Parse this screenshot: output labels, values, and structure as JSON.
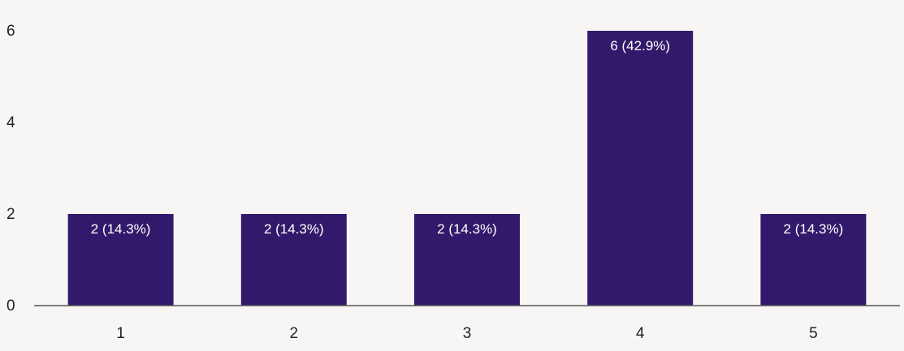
{
  "chart_data": {
    "type": "bar",
    "categories": [
      "1",
      "2",
      "3",
      "4",
      "5"
    ],
    "values": [
      2,
      2,
      2,
      6,
      2
    ],
    "data_labels": [
      "2 (14.3%)",
      "2 (14.3%)",
      "2 (14.3%)",
      "6 (42.9%)",
      "2 (14.3%)"
    ],
    "yticks": [
      "0",
      "2",
      "4",
      "6"
    ],
    "ylim": [
      0,
      6
    ],
    "grid": false,
    "legend": "none",
    "bar_color": "#33196b",
    "axis_color": "#555555"
  }
}
